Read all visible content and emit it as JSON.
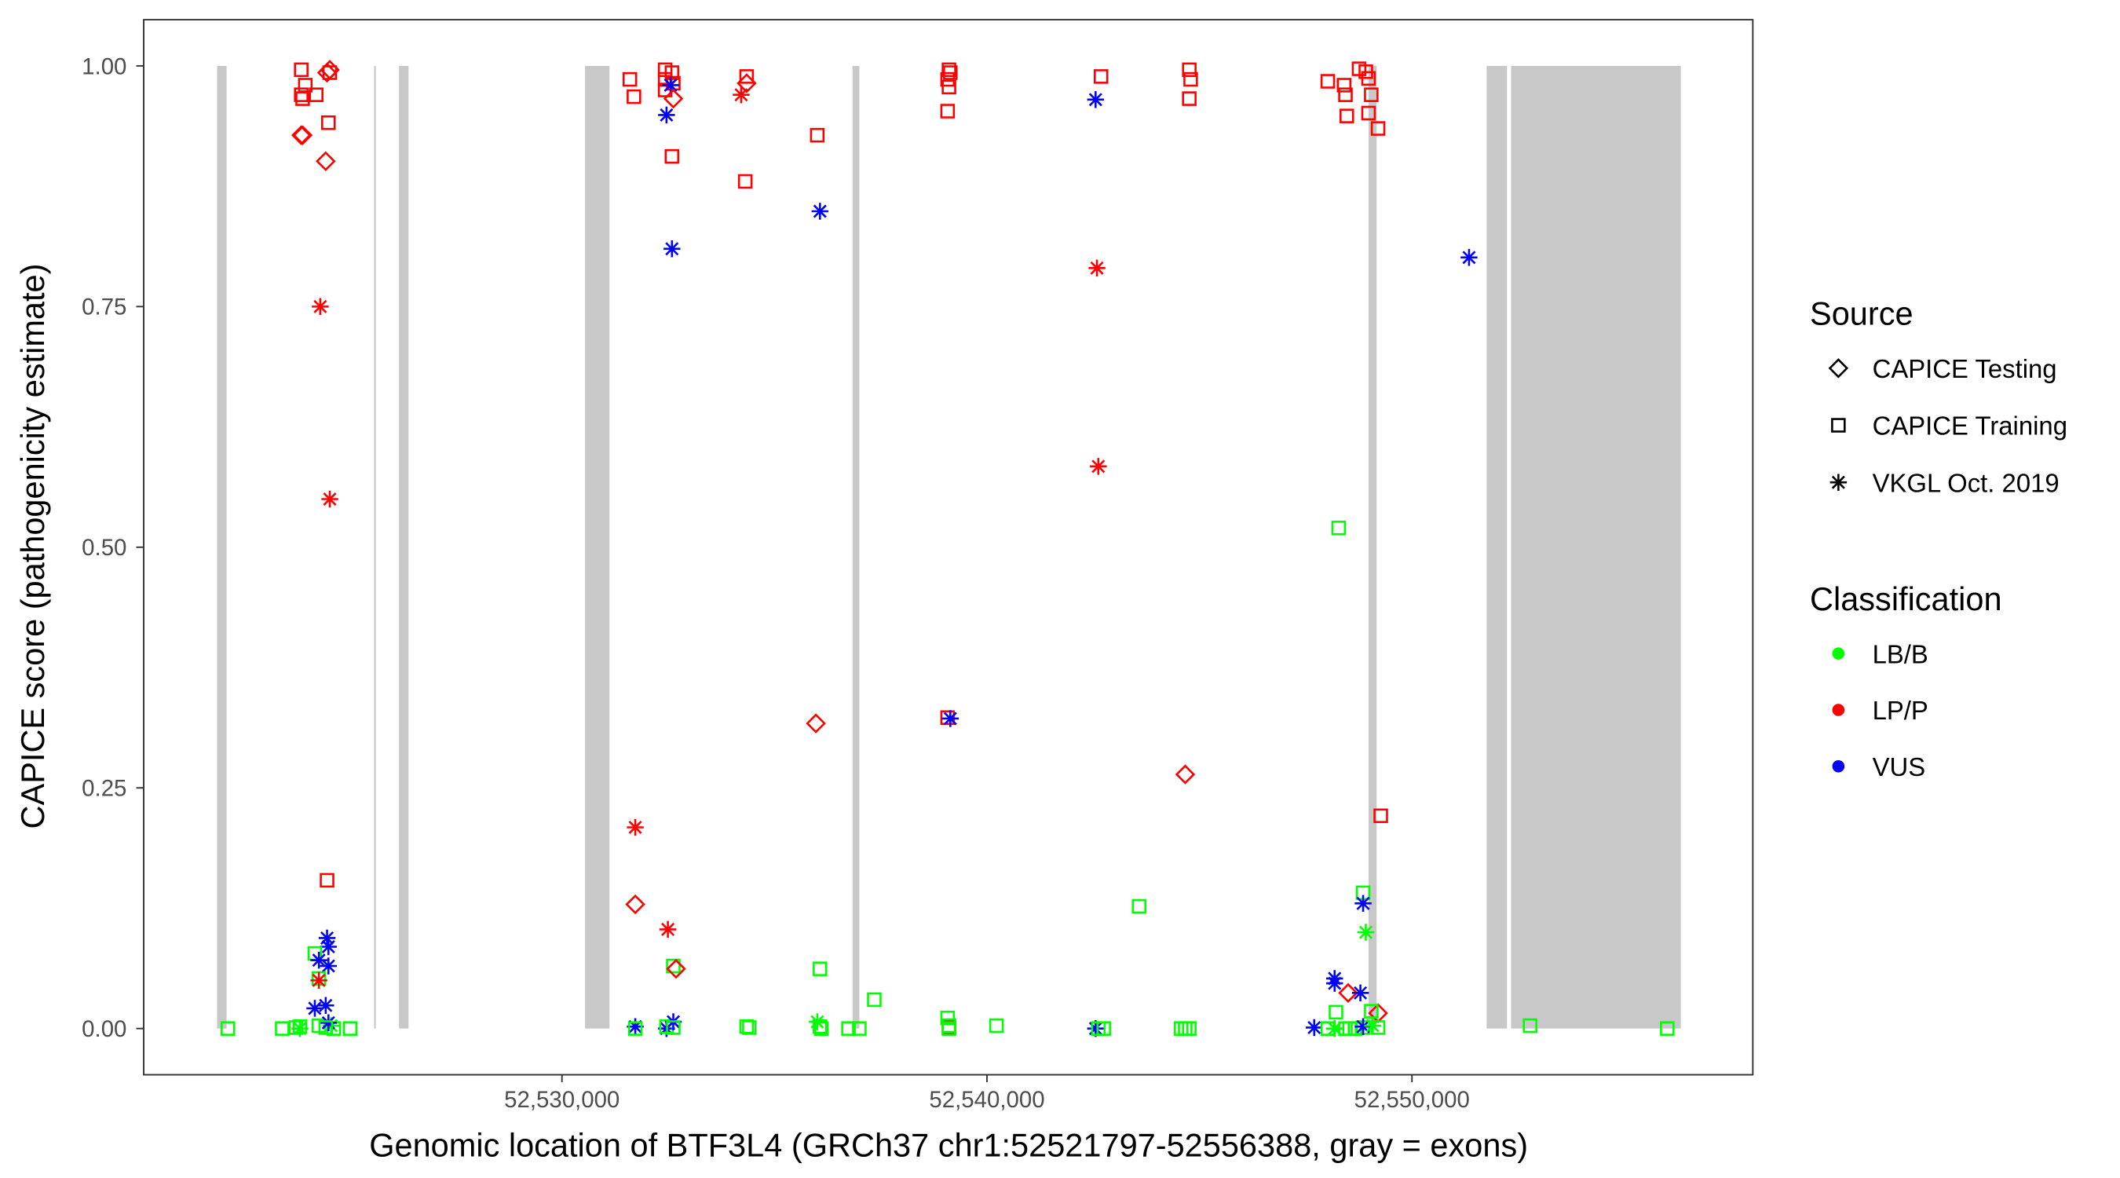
{
  "chart_data": {
    "type": "scatter",
    "title": "",
    "xlabel": "Genomic location of BTF3L4 (GRCh37 chr1:52521797-52556388, gray = exons)",
    "ylabel": "CAPICE score (pathogenicity estimate)",
    "xlim": [
      52520159,
      52558020
    ],
    "ylim": [
      -0.048,
      1.048
    ],
    "x_ticks": [
      {
        "value": 52530000,
        "label": "52,530,000"
      },
      {
        "value": 52540000,
        "label": "52,540,000"
      },
      {
        "value": 52550000,
        "label": "52,550,000"
      }
    ],
    "y_ticks": [
      {
        "value": 0,
        "label": "0.00"
      },
      {
        "value": 0.25,
        "label": "0.25"
      },
      {
        "value": 0.5,
        "label": "0.50"
      },
      {
        "value": 0.75,
        "label": "0.75"
      },
      {
        "value": 1,
        "label": "1.00"
      }
    ],
    "grid": false,
    "exon_color": "#c8c8c8",
    "exons": [
      [
        52521885,
        52522109
      ],
      [
        52525580,
        52525620
      ],
      [
        52526166,
        52526390
      ],
      [
        52530543,
        52531118
      ],
      [
        52536837,
        52536997
      ],
      [
        52548978,
        52549169
      ],
      [
        52551757,
        52552236
      ],
      [
        52552332,
        52556326
      ]
    ],
    "legend": {
      "placement": "right",
      "source": {
        "title": "Source",
        "items": [
          {
            "key": "testing",
            "label": "CAPICE Testing",
            "shape": "diamond"
          },
          {
            "key": "training",
            "label": "CAPICE Training",
            "shape": "square"
          },
          {
            "key": "vkgl",
            "label": "VKGL Oct. 2019",
            "shape": "asterisk"
          }
        ]
      },
      "classification": {
        "title": "Classification",
        "items": [
          {
            "key": "LB/B",
            "label": "LB/B",
            "color": "#00ff00"
          },
          {
            "key": "LP/P",
            "label": "LP/P",
            "color": "#ff0000"
          },
          {
            "key": "VUS",
            "label": "VUS",
            "color": "#0000ff"
          }
        ]
      }
    },
    "point_fields": [
      "position",
      "score",
      "source",
      "classification"
    ],
    "points": [
      [
        52523866,
        0.996,
        "training",
        "LP/P"
      ],
      [
        52524473,
        0.993,
        "testing",
        "LP/P"
      ],
      [
        52524537,
        0.993,
        "training",
        "LP/P"
      ],
      [
        52524537,
        0.996,
        "testing",
        "LP/P"
      ],
      [
        52523961,
        0.98,
        "training",
        "LP/P"
      ],
      [
        52523866,
        0.97,
        "training",
        "LP/P"
      ],
      [
        52523898,
        0.966,
        "training",
        "LP/P"
      ],
      [
        52524217,
        0.97,
        "training",
        "LP/P"
      ],
      [
        52524505,
        0.941,
        "training",
        "LP/P"
      ],
      [
        52523866,
        0.928,
        "testing",
        "LP/P"
      ],
      [
        52523898,
        0.928,
        "testing",
        "LP/P"
      ],
      [
        52524441,
        0.901,
        "testing",
        "LP/P"
      ],
      [
        52524313,
        0.75,
        "vkgl",
        "LP/P"
      ],
      [
        52524537,
        0.55,
        "vkgl",
        "LP/P"
      ],
      [
        52524473,
        0.154,
        "training",
        "LP/P"
      ],
      [
        52524473,
        0.094,
        "vkgl",
        "VUS"
      ],
      [
        52524505,
        0.085,
        "vkgl",
        "VUS"
      ],
      [
        52524185,
        0.078,
        "training",
        "LB/B"
      ],
      [
        52524281,
        0.071,
        "vkgl",
        "VUS"
      ],
      [
        52524505,
        0.065,
        "vkgl",
        "VUS"
      ],
      [
        52524281,
        0.052,
        "training",
        "LB/B"
      ],
      [
        52524281,
        0.05,
        "vkgl",
        "LP/P"
      ],
      [
        52524441,
        0.024,
        "vkgl",
        "VUS"
      ],
      [
        52524185,
        0.021,
        "vkgl",
        "VUS"
      ],
      [
        52522140,
        0,
        "training",
        "LB/B"
      ],
      [
        52523418,
        0,
        "training",
        "LB/B"
      ],
      [
        52523738,
        0.001,
        "training",
        "LB/B"
      ],
      [
        52523834,
        0.002,
        "training",
        "LB/B"
      ],
      [
        52523834,
        0,
        "vkgl",
        "LB/B"
      ],
      [
        52524281,
        0.003,
        "training",
        "LB/B"
      ],
      [
        52524568,
        0.003,
        "vkgl",
        "LB/B"
      ],
      [
        52524632,
        0,
        "training",
        "LB/B"
      ],
      [
        52524505,
        0.006,
        "vkgl",
        "VUS"
      ],
      [
        52525016,
        0,
        "training",
        "LB/B"
      ],
      [
        52524441,
        0.001,
        "training",
        "LB/B"
      ],
      [
        52531598,
        0.986,
        "training",
        "LP/P"
      ],
      [
        52531693,
        0.968,
        "training",
        "LP/P"
      ],
      [
        52532428,
        0.996,
        "training",
        "LP/P"
      ],
      [
        52532588,
        0.993,
        "training",
        "LP/P"
      ],
      [
        52532428,
        0.986,
        "training",
        "LP/P"
      ],
      [
        52532428,
        0.975,
        "training",
        "LP/P"
      ],
      [
        52532620,
        0.982,
        "training",
        "LP/P"
      ],
      [
        52532556,
        0.98,
        "vkgl",
        "VUS"
      ],
      [
        52532620,
        0.966,
        "testing",
        "LP/P"
      ],
      [
        52532460,
        0.949,
        "vkgl",
        "VUS"
      ],
      [
        52532588,
        0.906,
        "training",
        "LP/P"
      ],
      [
        52532588,
        0.81,
        "vkgl",
        "VUS"
      ],
      [
        52534345,
        0.989,
        "training",
        "LP/P"
      ],
      [
        52534345,
        0.982,
        "testing",
        "LP/P"
      ],
      [
        52534217,
        0.97,
        "vkgl",
        "LP/P"
      ],
      [
        52534313,
        0.88,
        "training",
        "LP/P"
      ],
      [
        52536007,
        0.928,
        "training",
        "LP/P"
      ],
      [
        52536071,
        0.849,
        "vkgl",
        "VUS"
      ],
      [
        52535975,
        0.317,
        "testing",
        "LP/P"
      ],
      [
        52539074,
        0.323,
        "training",
        "LP/P"
      ],
      [
        52539138,
        0.322,
        "vkgl",
        "VUS"
      ],
      [
        52539106,
        0.996,
        "training",
        "LP/P"
      ],
      [
        52539138,
        0.993,
        "training",
        "LP/P"
      ],
      [
        52539074,
        0.986,
        "training",
        "LP/P"
      ],
      [
        52539106,
        0.978,
        "training",
        "LP/P"
      ],
      [
        52539074,
        0.953,
        "training",
        "LP/P"
      ],
      [
        52531725,
        0.209,
        "vkgl",
        "LP/P"
      ],
      [
        52531725,
        0.129,
        "testing",
        "LP/P"
      ],
      [
        52532492,
        0.103,
        "vkgl",
        "LP/P"
      ],
      [
        52532620,
        0.065,
        "training",
        "LB/B"
      ],
      [
        52532684,
        0.062,
        "testing",
        "LP/P"
      ],
      [
        52531725,
        0.002,
        "vkgl",
        "VUS"
      ],
      [
        52531725,
        0,
        "training",
        "LB/B"
      ],
      [
        52532460,
        0,
        "vkgl",
        "VUS"
      ],
      [
        52532460,
        0.002,
        "training",
        "LB/B"
      ],
      [
        52532620,
        0.007,
        "vkgl",
        "VUS"
      ],
      [
        52532620,
        0.001,
        "training",
        "LB/B"
      ],
      [
        52534345,
        0.002,
        "training",
        "LB/B"
      ],
      [
        52534409,
        0.001,
        "training",
        "LB/B"
      ],
      [
        52536007,
        0.007,
        "vkgl",
        "LB/B"
      ],
      [
        52536071,
        0.002,
        "training",
        "LB/B"
      ],
      [
        52536102,
        0,
        "training",
        "LB/B"
      ],
      [
        52536071,
        0.062,
        "training",
        "LB/B"
      ],
      [
        52536741,
        0,
        "training",
        "LB/B"
      ],
      [
        52536997,
        0,
        "training",
        "LB/B"
      ],
      [
        52537349,
        0.03,
        "training",
        "LB/B"
      ],
      [
        52539074,
        0.011,
        "training",
        "LB/B"
      ],
      [
        52539106,
        0.001,
        "training",
        "LP/P"
      ],
      [
        52539106,
        0.003,
        "training",
        "LB/B"
      ],
      [
        52539106,
        0,
        "training",
        "LB/B"
      ],
      [
        52540224,
        0.003,
        "training",
        "LB/B"
      ],
      [
        52542556,
        0.965,
        "vkgl",
        "VUS"
      ],
      [
        52542684,
        0.989,
        "training",
        "LP/P"
      ],
      [
        52542588,
        0.79,
        "vkgl",
        "LP/P"
      ],
      [
        52542620,
        0.584,
        "vkgl",
        "LP/P"
      ],
      [
        52542556,
        0,
        "vkgl",
        "VUS"
      ],
      [
        52542620,
        0,
        "training",
        "LB/B"
      ],
      [
        52542748,
        0,
        "training",
        "LB/B"
      ],
      [
        52543579,
        0.127,
        "training",
        "LB/B"
      ],
      [
        52544761,
        0.996,
        "training",
        "LP/P"
      ],
      [
        52544793,
        0.986,
        "training",
        "LP/P"
      ],
      [
        52544761,
        0.966,
        "training",
        "LP/P"
      ],
      [
        52544665,
        0.264,
        "testing",
        "LP/P"
      ],
      [
        52544569,
        0,
        "training",
        "LB/B"
      ],
      [
        52544665,
        0,
        "training",
        "LB/B"
      ],
      [
        52544761,
        0,
        "training",
        "LB/B"
      ],
      [
        52548755,
        0.997,
        "training",
        "LP/P"
      ],
      [
        52548914,
        0.994,
        "training",
        "LP/P"
      ],
      [
        52548978,
        0.987,
        "training",
        "LP/P"
      ],
      [
        52548020,
        0.984,
        "training",
        "LP/P"
      ],
      [
        52548403,
        0.98,
        "training",
        "LP/P"
      ],
      [
        52548435,
        0.97,
        "training",
        "LP/P"
      ],
      [
        52549042,
        0.97,
        "training",
        "LP/P"
      ],
      [
        52548467,
        0.948,
        "training",
        "LP/P"
      ],
      [
        52548978,
        0.951,
        "training",
        "LP/P"
      ],
      [
        52549202,
        0.935,
        "training",
        "LP/P"
      ],
      [
        52551343,
        0.801,
        "vkgl",
        "VUS"
      ],
      [
        52548275,
        0.52,
        "training",
        "LB/B"
      ],
      [
        52549266,
        0.221,
        "training",
        "LP/P"
      ],
      [
        52548851,
        0.141,
        "training",
        "LB/B"
      ],
      [
        52548851,
        0.13,
        "vkgl",
        "VUS"
      ],
      [
        52548914,
        0.1,
        "vkgl",
        "LB/B"
      ],
      [
        52548180,
        0.052,
        "vkgl",
        "VUS"
      ],
      [
        52548180,
        0.047,
        "vkgl",
        "VUS"
      ],
      [
        52548499,
        0.037,
        "testing",
        "LP/P"
      ],
      [
        52548787,
        0.037,
        "vkgl",
        "VUS"
      ],
      [
        52548212,
        0.017,
        "training",
        "LB/B"
      ],
      [
        52549202,
        0.016,
        "testing",
        "LP/P"
      ],
      [
        52549042,
        0.018,
        "training",
        "LB/B"
      ],
      [
        52547700,
        0.001,
        "vkgl",
        "VUS"
      ],
      [
        52548020,
        0,
        "training",
        "LB/B"
      ],
      [
        52548435,
        0,
        "training",
        "LB/B"
      ],
      [
        52548531,
        0,
        "training",
        "LB/B"
      ],
      [
        52548659,
        0,
        "training",
        "LB/B"
      ],
      [
        52548851,
        0.001,
        "training",
        "LB/B"
      ],
      [
        52549202,
        0.001,
        "training",
        "LB/B"
      ],
      [
        52548180,
        0,
        "vkgl",
        "LB/B"
      ],
      [
        52548851,
        0.002,
        "vkgl",
        "VUS"
      ],
      [
        52549074,
        0.003,
        "vkgl",
        "LB/B"
      ],
      [
        52552780,
        0.003,
        "training",
        "LB/B"
      ],
      [
        52556007,
        0,
        "training",
        "LB/B"
      ]
    ]
  }
}
